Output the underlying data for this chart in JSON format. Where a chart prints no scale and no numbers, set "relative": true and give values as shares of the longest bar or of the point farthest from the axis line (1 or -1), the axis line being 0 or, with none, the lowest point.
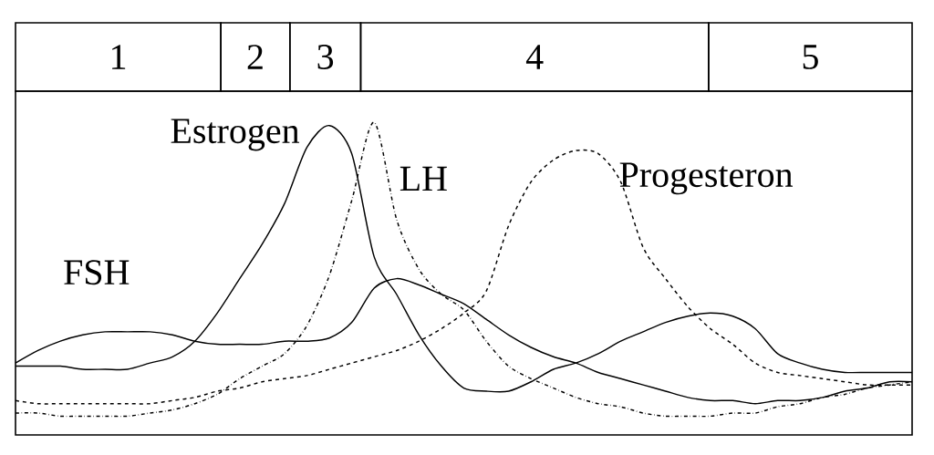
{
  "chart_data": {
    "type": "line",
    "relative": true,
    "categories": [
      null,
      null,
      null,
      null,
      null,
      null,
      null,
      null,
      null,
      null,
      null,
      null,
      null,
      null,
      null,
      null,
      null,
      null,
      null,
      null,
      null,
      null,
      null,
      null,
      null,
      null,
      null,
      null,
      null,
      null,
      null,
      null,
      null,
      null,
      null,
      null,
      null,
      null,
      null,
      null,
      null
    ],
    "series": [
      {
        "name": "Estrogen",
        "color": "#000000",
        "line_style": "solid",
        "values": [
          0.22,
          0.22,
          0.22,
          0.21,
          0.21,
          0.21,
          0.23,
          0.25,
          0.3,
          0.39,
          0.5,
          0.61,
          0.74,
          0.92,
          0.99,
          0.9,
          0.57,
          0.45,
          0.32,
          0.22,
          0.15,
          0.14,
          0.14,
          0.17,
          0.21,
          0.23,
          0.26,
          0.3,
          0.33,
          0.36,
          0.38,
          0.39,
          0.38,
          0.34,
          0.26,
          0.23,
          0.21,
          0.2,
          0.2,
          0.2,
          0.2
        ]
      },
      {
        "name": "LH",
        "color": "#000000",
        "line_style": "dashdot",
        "values": [
          0.07,
          0.07,
          0.06,
          0.06,
          0.06,
          0.06,
          0.07,
          0.08,
          0.1,
          0.13,
          0.18,
          0.22,
          0.26,
          0.35,
          0.51,
          0.75,
          1,
          0.69,
          0.53,
          0.45,
          0.4,
          0.3,
          0.22,
          0.18,
          0.15,
          0.12,
          0.1,
          0.09,
          0.07,
          0.06,
          0.06,
          0.06,
          0.07,
          0.07,
          0.09,
          0.1,
          0.12,
          0.13,
          0.15,
          0.16,
          0.17
        ]
      },
      {
        "name": "Progesteron",
        "color": "#000000",
        "line_style": "dashed",
        "values": [
          0.11,
          0.1,
          0.1,
          0.1,
          0.1,
          0.1,
          0.1,
          0.11,
          0.12,
          0.14,
          0.15,
          0.17,
          0.18,
          0.19,
          0.21,
          0.23,
          0.25,
          0.27,
          0.3,
          0.34,
          0.39,
          0.46,
          0.67,
          0.81,
          0.88,
          0.91,
          0.9,
          0.81,
          0.6,
          0.5,
          0.41,
          0.34,
          0.29,
          0.23,
          0.2,
          0.19,
          0.18,
          0.17,
          0.16,
          0.16,
          0.16
        ]
      },
      {
        "name": "FSH",
        "color": "#000000",
        "line_style": "solid",
        "values": [
          0.23,
          0.27,
          0.3,
          0.32,
          0.33,
          0.33,
          0.33,
          0.32,
          0.3,
          0.29,
          0.29,
          0.29,
          0.3,
          0.3,
          0.31,
          0.36,
          0.47,
          0.5,
          0.48,
          0.45,
          0.42,
          0.37,
          0.32,
          0.28,
          0.25,
          0.23,
          0.2,
          0.18,
          0.16,
          0.14,
          0.12,
          0.11,
          0.11,
          0.1,
          0.11,
          0.11,
          0.12,
          0.14,
          0.15,
          0.17,
          0.17
        ]
      }
    ],
    "annotations": [
      "1",
      "2",
      "3",
      "4",
      "5"
    ]
  }
}
